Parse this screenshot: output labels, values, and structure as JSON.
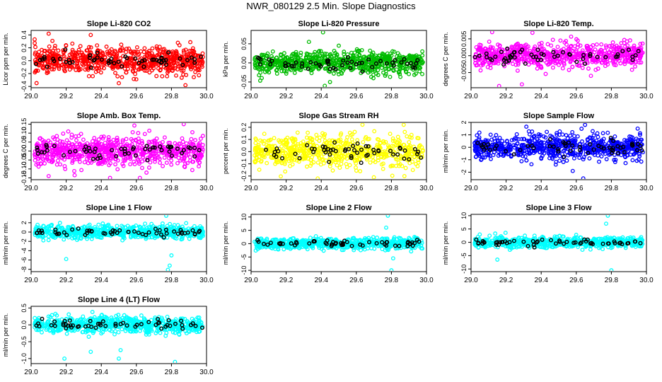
{
  "page_title": "NWR_080129  2.5 Min. Slope Diagnostics",
  "chart_data": [
    {
      "type": "scatter",
      "title": "Slope Li-820 CO2",
      "ylabel": "Licor ppm per min.",
      "color": "#ff0000",
      "xlim": [
        29.0,
        30.0
      ],
      "ylim": [
        -0.42,
        0.47
      ],
      "yticks": [
        -0.4,
        -0.2,
        0.0,
        0.2,
        0.4
      ],
      "ytick_labels": [
        "-0.4",
        "-0.2",
        "0.0",
        "0.2",
        "0.4"
      ],
      "xticks": [
        29.0,
        29.2,
        29.4,
        29.6,
        29.8,
        30.0
      ],
      "xtick_labels": [
        "29.0",
        "29.2",
        "29.4",
        "29.6",
        "29.8",
        "30.0"
      ],
      "n_points": 700,
      "spread": 0.1,
      "outliers": [
        [
          29.1,
          0.42
        ],
        [
          29.34,
          0.4
        ],
        [
          29.5,
          -0.35
        ],
        [
          29.88,
          -0.38
        ],
        [
          29.02,
          0.33
        ]
      ]
    },
    {
      "type": "scatter",
      "title": "Slope Li-820 Pressure",
      "ylabel": "kPa per min.",
      "color": "#00bb00",
      "xlim": [
        29.0,
        30.0
      ],
      "ylim": [
        -0.065,
        0.085
      ],
      "yticks": [
        -0.05,
        0.0,
        0.05
      ],
      "ytick_labels": [
        "-0.05",
        "0.00",
        "0.05"
      ],
      "xticks": [
        29.0,
        29.2,
        29.4,
        29.6,
        29.8,
        30.0
      ],
      "xtick_labels": [
        "29.0",
        "29.2",
        "29.4",
        "29.6",
        "29.8",
        "30.0"
      ],
      "n_points": 700,
      "spread": 0.014,
      "outliers": [
        [
          29.41,
          0.08
        ],
        [
          29.42,
          -0.06
        ],
        [
          29.33,
          0.055
        ],
        [
          29.45,
          -0.05
        ],
        [
          29.5,
          0.045
        ]
      ]
    },
    {
      "type": "scatter",
      "title": "Slope Li-820 Temp.",
      "ylabel": "degrees C per min.",
      "color": "#ff00ff",
      "xlim": [
        29.0,
        30.0
      ],
      "ylim": [
        -0.0095,
        0.0075
      ],
      "yticks": [
        -0.005,
        0.0,
        0.005
      ],
      "ytick_labels": [
        "-0.005",
        "0.000",
        "0.005"
      ],
      "xticks": [
        29.0,
        29.2,
        29.4,
        29.6,
        29.8,
        30.0
      ],
      "xtick_labels": [
        "29.0",
        "29.2",
        "29.4",
        "29.6",
        "29.8",
        "30.0"
      ],
      "n_points": 700,
      "spread": 0.0018,
      "outliers": [
        [
          29.16,
          -0.009
        ],
        [
          29.29,
          -0.0085
        ],
        [
          29.12,
          0.007
        ],
        [
          29.35,
          0.0068
        ]
      ]
    },
    {
      "type": "scatter",
      "title": "Slope Amb. Box Temp.",
      "ylabel": "degrees C per min.",
      "color": "#ff00ff",
      "xlim": [
        29.0,
        30.0
      ],
      "ylim": [
        -0.16,
        0.16
      ],
      "yticks": [
        -0.15,
        -0.1,
        -0.05,
        0.0,
        0.05,
        0.1,
        0.15
      ],
      "ytick_labels": [
        "-0.15",
        "-0.10",
        "-0.05",
        "0.00",
        "0.05",
        "0.10",
        "0.15"
      ],
      "xticks": [
        29.0,
        29.2,
        29.4,
        29.6,
        29.8,
        30.0
      ],
      "xtick_labels": [
        "29.0",
        "29.2",
        "29.4",
        "29.6",
        "29.8",
        "30.0"
      ],
      "n_points": 700,
      "spread": 0.04,
      "outliers": [
        [
          29.45,
          -0.15
        ],
        [
          29.62,
          -0.15
        ],
        [
          29.87,
          0.15
        ],
        [
          29.1,
          -0.14
        ]
      ]
    },
    {
      "type": "scatter",
      "title": "Slope Gas Stream RH",
      "ylabel": "percent per min.",
      "color": "#ffff00",
      "xlim": [
        29.0,
        30.0
      ],
      "ylim": [
        -0.23,
        0.24
      ],
      "yticks": [
        -0.2,
        -0.1,
        0.0,
        0.1,
        0.2
      ],
      "ytick_labels": [
        "-0.2",
        "-0.1",
        "0.0",
        "0.1",
        "0.2"
      ],
      "xticks": [
        29.0,
        29.2,
        29.4,
        29.6,
        29.8,
        30.0
      ],
      "xtick_labels": [
        "29.0",
        "29.2",
        "29.4",
        "29.6",
        "29.8",
        "30.0"
      ],
      "n_points": 650,
      "spread": 0.065,
      "outliers": [
        [
          29.87,
          0.22
        ],
        [
          29.38,
          -0.22
        ],
        [
          29.7,
          -0.21
        ]
      ]
    },
    {
      "type": "scatter",
      "title": "Slope Sample Flow",
      "ylabel": "ml/min per min.",
      "color": "#0000ff",
      "xlim": [
        29.0,
        30.0
      ],
      "ylim": [
        -2.6,
        2.0
      ],
      "yticks": [
        -2,
        -1,
        0,
        1,
        2
      ],
      "ytick_labels": [
        "-2",
        "-1",
        "0",
        "1",
        "2"
      ],
      "xticks": [
        29.0,
        29.2,
        29.4,
        29.6,
        29.8,
        30.0
      ],
      "xtick_labels": [
        "29.0",
        "29.2",
        "29.4",
        "29.6",
        "29.8",
        "30.0"
      ],
      "n_points": 700,
      "spread": 0.5,
      "outliers": [
        [
          29.64,
          -2.5
        ],
        [
          29.65,
          1.8
        ],
        [
          29.58,
          -1.9
        ],
        [
          29.95,
          1.5
        ]
      ]
    },
    {
      "type": "scatter",
      "title": "Slope Line 1 Flow",
      "ylabel": "ml/min per min.",
      "color": "#00ffff",
      "xlim": [
        29.0,
        30.0
      ],
      "ylim": [
        -8.5,
        3.8
      ],
      "yticks": [
        -8,
        -6,
        -4,
        -2,
        0,
        2
      ],
      "ytick_labels": [
        "-8",
        "-6",
        "-4",
        "-2",
        "0",
        "2"
      ],
      "xticks": [
        29.0,
        29.2,
        29.4,
        29.6,
        29.8,
        30.0
      ],
      "xtick_labels": [
        "29.0",
        "29.2",
        "29.4",
        "29.6",
        "29.8",
        "30.0"
      ],
      "n_points": 650,
      "spread": 0.7,
      "outliers": [
        [
          29.78,
          -8.1
        ],
        [
          29.79,
          -7.2
        ],
        [
          29.77,
          3.5
        ],
        [
          29.8,
          -5.0
        ],
        [
          29.2,
          -5.8
        ]
      ]
    },
    {
      "type": "scatter",
      "title": "Slope Line 2 Flow",
      "ylabel": "ml/min per min.",
      "color": "#00ffff",
      "xlim": [
        29.0,
        30.0
      ],
      "ylim": [
        -10.5,
        11.0
      ],
      "yticks": [
        -10,
        -5,
        0,
        5,
        10
      ],
      "ytick_labels": [
        "-10",
        "-5",
        "0",
        "5",
        "10"
      ],
      "xticks": [
        29.0,
        29.2,
        29.4,
        29.6,
        29.8,
        30.0
      ],
      "xtick_labels": [
        "29.0",
        "29.2",
        "29.4",
        "29.6",
        "29.8",
        "30.0"
      ],
      "n_points": 650,
      "spread": 1.0,
      "outliers": [
        [
          29.78,
          10.5
        ],
        [
          29.8,
          -10.0
        ],
        [
          29.77,
          6.0
        ],
        [
          29.81,
          -5.5
        ]
      ]
    },
    {
      "type": "scatter",
      "title": "Slope Line 3 Flow",
      "ylabel": "ml/min per min.",
      "color": "#00ffff",
      "xlim": [
        29.0,
        30.0
      ],
      "ylim": [
        -11.0,
        10.5
      ],
      "yticks": [
        -10,
        -5,
        0,
        5,
        10
      ],
      "ytick_labels": [
        "-10",
        "-5",
        "0",
        "5",
        "10"
      ],
      "xticks": [
        29.0,
        29.2,
        29.4,
        29.6,
        29.8,
        30.0
      ],
      "xtick_labels": [
        "29.0",
        "29.2",
        "29.4",
        "29.6",
        "29.8",
        "30.0"
      ],
      "n_points": 650,
      "spread": 1.0,
      "outliers": [
        [
          29.78,
          10.0
        ],
        [
          29.8,
          -10.5
        ],
        [
          29.77,
          7.0
        ],
        [
          29.15,
          -6.5
        ]
      ]
    },
    {
      "type": "scatter",
      "title": "Slope Line 4 (LT) Flow",
      "ylabel": "ml/min per min.",
      "color": "#00ffff",
      "xlim": [
        29.0,
        30.0
      ],
      "ylim": [
        -1.15,
        0.55
      ],
      "yticks": [
        -1.0,
        -0.5,
        0.0,
        0.5
      ],
      "ytick_labels": [
        "-1.0",
        "-0.5",
        "0.0",
        "0.5"
      ],
      "xticks": [
        29.0,
        29.2,
        29.4,
        29.6,
        29.8,
        30.0
      ],
      "xtick_labels": [
        "29.0",
        "29.2",
        "29.4",
        "29.6",
        "29.8",
        "30.0"
      ],
      "n_points": 650,
      "spread": 0.12,
      "outliers": [
        [
          29.82,
          -1.1
        ],
        [
          29.5,
          -1.0
        ],
        [
          29.19,
          -1.0
        ],
        [
          29.34,
          -0.8
        ],
        [
          29.51,
          -0.75
        ]
      ]
    }
  ]
}
